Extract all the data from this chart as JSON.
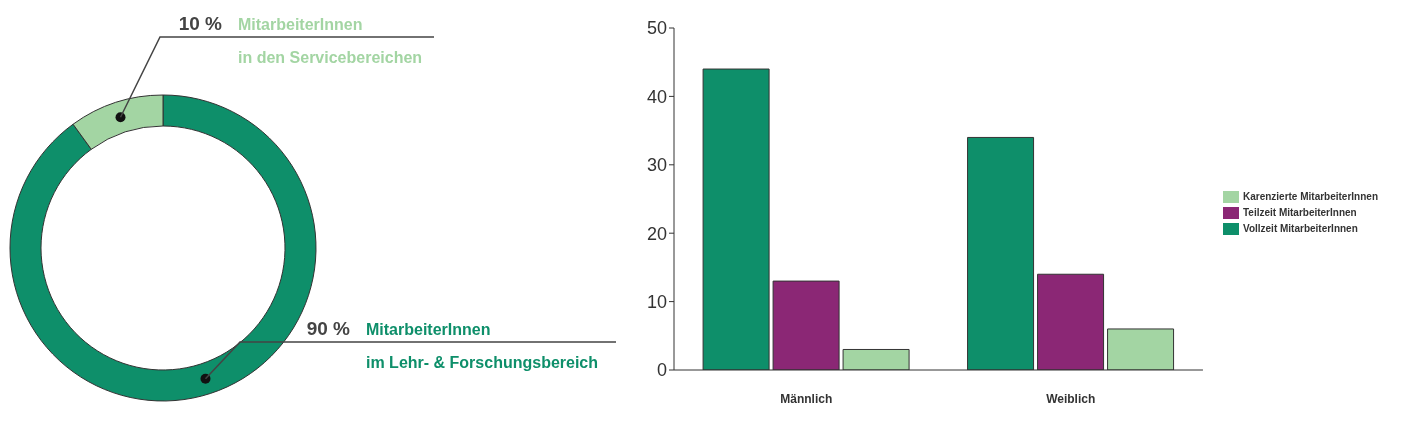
{
  "chart_data": [
    {
      "type": "donut",
      "categories": [
        "MitarbeiterInnen im Lehr- & Forschungsbereich",
        "MitarbeiterInnen in den Servicebereichen"
      ],
      "values": [
        90,
        10
      ],
      "colors": [
        "#0e8f6a",
        "#a3d5a3"
      ],
      "value_labels": [
        "90 %",
        "10 %"
      ]
    },
    {
      "type": "bar",
      "categories": [
        "Männlich",
        "Weiblich"
      ],
      "series": [
        {
          "name": "Vollzeit MitarbeiterInnen",
          "color": "#0e8f6a",
          "values": [
            44,
            34
          ]
        },
        {
          "name": "Teilzeit MitarbeiterInnen",
          "color": "#8b2775",
          "values": [
            13,
            14
          ]
        },
        {
          "name": "Karenzierte MitarbeiterInnen",
          "color": "#a3d5a3",
          "values": [
            3,
            6
          ]
        }
      ],
      "ylim": [
        0,
        50
      ],
      "yticks": [
        0,
        10,
        20,
        30,
        40,
        50
      ],
      "legend": "right"
    }
  ]
}
